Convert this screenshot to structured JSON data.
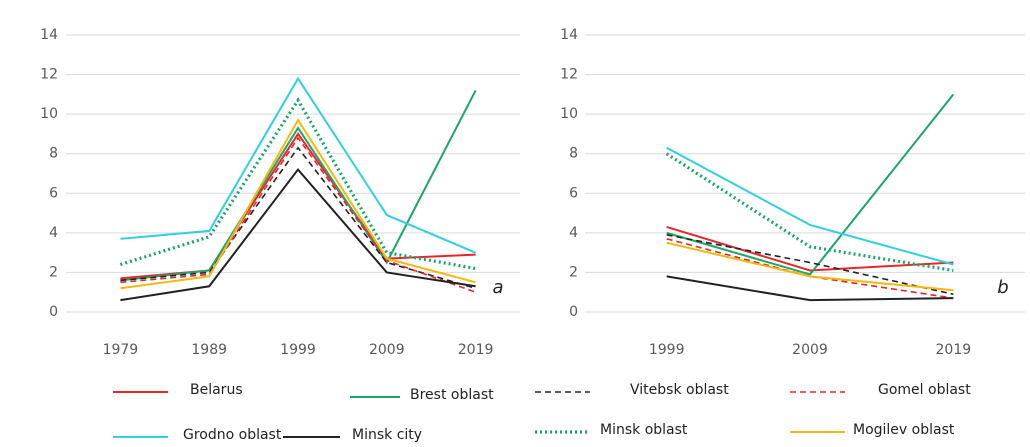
{
  "chart_data": [
    {
      "type": "line",
      "annotation": "a",
      "categories": [
        "1979",
        "1989",
        "1999",
        "2009",
        "2019"
      ],
      "ylim": [
        0,
        14
      ],
      "yticks": [
        0,
        2,
        4,
        6,
        8,
        10,
        12,
        14
      ],
      "grid": true,
      "series": [
        {
          "name": "Belarus",
          "color": "#e8262a",
          "dash": "solid",
          "values": [
            1.7,
            2.1,
            9.0,
            2.7,
            2.9
          ]
        },
        {
          "name": "Brest oblast",
          "color": "#1aa66b",
          "dash": "solid",
          "values": [
            1.6,
            2.1,
            9.3,
            2.5,
            11.2
          ]
        },
        {
          "name": "Vitebsk oblast",
          "color": "#222222",
          "dash": "dashed",
          "values": [
            1.6,
            2.0,
            8.3,
            2.5,
            1.2
          ]
        },
        {
          "name": "Gomel oblast",
          "color": "#e8262a",
          "dash": "dashed",
          "values": [
            1.5,
            1.9,
            8.8,
            2.6,
            1.0
          ]
        },
        {
          "name": "Grodno oblast",
          "color": "#2fd0e0",
          "dash": "solid",
          "values": [
            3.7,
            4.1,
            11.8,
            4.9,
            3.0
          ]
        },
        {
          "name": "Minsk city",
          "color": "#222222",
          "dash": "solid",
          "values": [
            0.6,
            1.3,
            7.2,
            2.0,
            1.3
          ]
        },
        {
          "name": "Minsk oblast",
          "color": "#1aa66b",
          "dash": "dotted",
          "values": [
            2.4,
            3.8,
            10.7,
            3.0,
            2.2
          ]
        },
        {
          "name": "Mogilev oblast",
          "color": "#f2b90f",
          "dash": "solid",
          "values": [
            1.2,
            1.8,
            9.7,
            2.7,
            1.5
          ]
        }
      ]
    },
    {
      "type": "line",
      "annotation": "b",
      "categories": [
        "1999",
        "2009",
        "2019"
      ],
      "ylim": [
        0,
        14
      ],
      "yticks": [
        0,
        2,
        4,
        6,
        8,
        10,
        12,
        14
      ],
      "grid": true,
      "series": [
        {
          "color": "#e8262a",
          "dash": "solid",
          "values": [
            4.3,
            2.1,
            2.5
          ]
        },
        {
          "color": "#1aa66b",
          "dash": "solid",
          "values": [
            4.0,
            1.9,
            11.0
          ]
        },
        {
          "color": "#222222",
          "dash": "dashed",
          "values": [
            3.9,
            2.5,
            0.9
          ]
        },
        {
          "color": "#e8262a",
          "dash": "dashed",
          "values": [
            3.7,
            1.8,
            0.7
          ]
        },
        {
          "color": "#2fd0e0",
          "dash": "solid",
          "values": [
            8.3,
            4.4,
            2.4
          ]
        },
        {
          "color": "#222222",
          "dash": "solid",
          "values": [
            1.8,
            0.6,
            0.7
          ]
        },
        {
          "color": "#1aa66b",
          "dash": "dotted",
          "values": [
            8.0,
            3.3,
            2.1
          ]
        },
        {
          "color": "#f2b90f",
          "dash": "solid",
          "values": [
            3.5,
            1.8,
            1.1
          ]
        }
      ]
    }
  ]
}
